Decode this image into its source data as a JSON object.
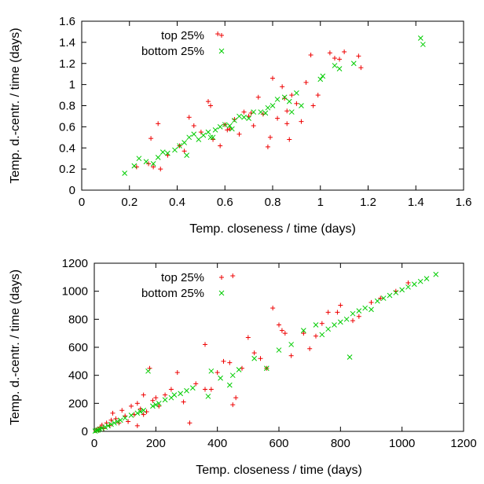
{
  "colors": {
    "top": "#ee0000",
    "bottom": "#00cc00"
  },
  "chart_data": [
    {
      "type": "scatter",
      "xlabel": "Temp. closeness / time (days)",
      "ylabel": "Temp. d.-centr. / time (days)",
      "xlim": [
        0,
        1.6
      ],
      "ylim": [
        0,
        1.6
      ],
      "xticks": [
        0,
        0.2,
        0.4,
        0.6,
        0.8,
        1,
        1.2,
        1.4,
        1.6
      ],
      "yticks": [
        0,
        0.2,
        0.4,
        0.6,
        0.8,
        1,
        1.2,
        1.4,
        1.6
      ],
      "xtick_labels": [
        "0",
        "0.2",
        "0.4",
        "0.6",
        "0.8",
        "1",
        "1.2",
        "1.4",
        "1.6"
      ],
      "ytick_labels": [
        "0",
        "0.2",
        "0.4",
        "0.6",
        "0.8",
        "1",
        "1.2",
        "1.4",
        "1.6"
      ],
      "legend_position": "top-left",
      "series": [
        {
          "name": "top 25%",
          "marker": "plus",
          "color": "#ee0000",
          "points": [
            [
              0.23,
              0.22
            ],
            [
              0.28,
              0.25
            ],
            [
              0.29,
              0.49
            ],
            [
              0.3,
              0.22
            ],
            [
              0.32,
              0.63
            ],
            [
              0.33,
              0.2
            ],
            [
              0.36,
              0.33
            ],
            [
              0.41,
              0.42
            ],
            [
              0.43,
              0.37
            ],
            [
              0.45,
              0.69
            ],
            [
              0.47,
              0.61
            ],
            [
              0.5,
              0.55
            ],
            [
              0.53,
              0.84
            ],
            [
              0.54,
              0.8
            ],
            [
              0.55,
              0.48
            ],
            [
              0.57,
              1.48
            ],
            [
              0.58,
              0.42
            ],
            [
              0.6,
              0.62
            ],
            [
              0.62,
              0.58
            ],
            [
              0.64,
              0.67
            ],
            [
              0.66,
              0.53
            ],
            [
              0.68,
              0.74
            ],
            [
              0.7,
              0.7
            ],
            [
              0.72,
              0.61
            ],
            [
              0.74,
              0.88
            ],
            [
              0.76,
              0.72
            ],
            [
              0.78,
              0.41
            ],
            [
              0.79,
              0.5
            ],
            [
              0.8,
              1.06
            ],
            [
              0.82,
              0.68
            ],
            [
              0.84,
              0.98
            ],
            [
              0.85,
              0.87
            ],
            [
              0.86,
              0.63
            ],
            [
              0.87,
              0.48
            ],
            [
              0.88,
              0.9
            ],
            [
              0.9,
              0.82
            ],
            [
              0.92,
              0.65
            ],
            [
              0.94,
              1.02
            ],
            [
              0.96,
              1.28
            ],
            [
              0.97,
              0.8
            ],
            [
              0.99,
              0.9
            ],
            [
              1.04,
              1.3
            ],
            [
              1.06,
              1.25
            ],
            [
              1.08,
              1.24
            ],
            [
              1.1,
              1.31
            ],
            [
              1.16,
              1.27
            ],
            [
              1.17,
              1.16
            ],
            [
              0.86,
              0.75
            ],
            [
              0.71,
              0.73
            ],
            [
              0.61,
              0.57
            ]
          ]
        },
        {
          "name": "bottom 25%",
          "marker": "cross",
          "color": "#00cc00",
          "points": [
            [
              0.18,
              0.16
            ],
            [
              0.22,
              0.23
            ],
            [
              0.24,
              0.3
            ],
            [
              0.27,
              0.27
            ],
            [
              0.3,
              0.25
            ],
            [
              0.32,
              0.31
            ],
            [
              0.34,
              0.36
            ],
            [
              0.36,
              0.35
            ],
            [
              0.39,
              0.38
            ],
            [
              0.41,
              0.42
            ],
            [
              0.43,
              0.45
            ],
            [
              0.45,
              0.5
            ],
            [
              0.47,
              0.53
            ],
            [
              0.49,
              0.48
            ],
            [
              0.51,
              0.52
            ],
            [
              0.53,
              0.55
            ],
            [
              0.55,
              0.5
            ],
            [
              0.56,
              0.57
            ],
            [
              0.58,
              0.6
            ],
            [
              0.6,
              0.62
            ],
            [
              0.62,
              0.61
            ],
            [
              0.64,
              0.66
            ],
            [
              0.66,
              0.7
            ],
            [
              0.68,
              0.69
            ],
            [
              0.7,
              0.68
            ],
            [
              0.72,
              0.74
            ],
            [
              0.75,
              0.74
            ],
            [
              0.78,
              0.78
            ],
            [
              0.8,
              0.8
            ],
            [
              0.82,
              0.86
            ],
            [
              0.85,
              0.88
            ],
            [
              0.87,
              0.84
            ],
            [
              0.88,
              0.74
            ],
            [
              0.9,
              0.92
            ],
            [
              0.92,
              0.8
            ],
            [
              1.0,
              1.05
            ],
            [
              1.01,
              1.08
            ],
            [
              1.06,
              1.18
            ],
            [
              1.08,
              1.15
            ],
            [
              1.14,
              1.2
            ],
            [
              1.42,
              1.44
            ],
            [
              1.43,
              1.38
            ],
            [
              0.44,
              0.33
            ],
            [
              0.54,
              0.5
            ],
            [
              0.63,
              0.58
            ],
            [
              0.77,
              0.73
            ]
          ]
        }
      ]
    },
    {
      "type": "scatter",
      "xlabel": "Temp. closeness / time (days)",
      "ylabel": "Temp. d.-centr. / time (days)",
      "xlim": [
        0,
        1200
      ],
      "ylim": [
        0,
        1200
      ],
      "xticks": [
        0,
        200,
        400,
        600,
        800,
        1000,
        1200
      ],
      "yticks": [
        0,
        200,
        400,
        600,
        800,
        1000,
        1200
      ],
      "xtick_labels": [
        "0",
        "200",
        "400",
        "600",
        "800",
        "1000",
        "1200"
      ],
      "ytick_labels": [
        "0",
        "200",
        "400",
        "600",
        "800",
        "1000",
        "1200"
      ],
      "legend_position": "top-left",
      "series": [
        {
          "name": "top 25%",
          "marker": "plus",
          "color": "#ee0000",
          "points": [
            [
              5,
              5
            ],
            [
              10,
              15
            ],
            [
              15,
              10
            ],
            [
              20,
              30
            ],
            [
              30,
              20
            ],
            [
              40,
              60
            ],
            [
              50,
              40
            ],
            [
              60,
              130
            ],
            [
              70,
              90
            ],
            [
              80,
              60
            ],
            [
              90,
              150
            ],
            [
              100,
              110
            ],
            [
              110,
              70
            ],
            [
              120,
              180
            ],
            [
              130,
              120
            ],
            [
              140,
              200
            ],
            [
              150,
              160
            ],
            [
              160,
              260
            ],
            [
              170,
              140
            ],
            [
              180,
              450
            ],
            [
              190,
              220
            ],
            [
              200,
              240
            ],
            [
              210,
              180
            ],
            [
              230,
              260
            ],
            [
              250,
              300
            ],
            [
              270,
              420
            ],
            [
              290,
              210
            ],
            [
              310,
              60
            ],
            [
              330,
              340
            ],
            [
              360,
              620
            ],
            [
              380,
              300
            ],
            [
              400,
              420
            ],
            [
              420,
              500
            ],
            [
              440,
              490
            ],
            [
              450,
              190
            ],
            [
              460,
              240
            ],
            [
              480,
              450
            ],
            [
              500,
              670
            ],
            [
              520,
              560
            ],
            [
              540,
              520
            ],
            [
              560,
              450
            ],
            [
              600,
              760
            ],
            [
              620,
              700
            ],
            [
              640,
              540
            ],
            [
              680,
              700
            ],
            [
              700,
              590
            ],
            [
              740,
              770
            ],
            [
              760,
              850
            ],
            [
              790,
              850
            ],
            [
              800,
              900
            ],
            [
              840,
              790
            ],
            [
              860,
              820
            ],
            [
              900,
              920
            ],
            [
              930,
              950
            ],
            [
              980,
              1000
            ],
            [
              1020,
              1060
            ],
            [
              450,
              1110
            ],
            [
              580,
              880
            ],
            [
              610,
              720
            ],
            [
              720,
              680
            ],
            [
              140,
              40
            ],
            [
              160,
              120
            ],
            [
              55,
              80
            ],
            [
              25,
              45
            ],
            [
              360,
              300
            ]
          ]
        },
        {
          "name": "bottom 25%",
          "marker": "cross",
          "color": "#00cc00",
          "points": [
            [
              3,
              2
            ],
            [
              8,
              6
            ],
            [
              12,
              10
            ],
            [
              18,
              16
            ],
            [
              25,
              22
            ],
            [
              35,
              30
            ],
            [
              45,
              40
            ],
            [
              55,
              50
            ],
            [
              65,
              60
            ],
            [
              75,
              70
            ],
            [
              85,
              80
            ],
            [
              100,
              95
            ],
            [
              120,
              115
            ],
            [
              140,
              130
            ],
            [
              160,
              150
            ],
            [
              175,
              430
            ],
            [
              190,
              180
            ],
            [
              210,
              200
            ],
            [
              230,
              225
            ],
            [
              260,
              260
            ],
            [
              280,
              270
            ],
            [
              300,
              290
            ],
            [
              320,
              310
            ],
            [
              370,
              250
            ],
            [
              380,
              430
            ],
            [
              410,
              380
            ],
            [
              440,
              330
            ],
            [
              450,
              400
            ],
            [
              470,
              440
            ],
            [
              520,
              520
            ],
            [
              560,
              450
            ],
            [
              600,
              580
            ],
            [
              640,
              620
            ],
            [
              680,
              720
            ],
            [
              720,
              760
            ],
            [
              740,
              690
            ],
            [
              760,
              730
            ],
            [
              780,
              760
            ],
            [
              800,
              780
            ],
            [
              820,
              800
            ],
            [
              830,
              530
            ],
            [
              840,
              840
            ],
            [
              860,
              860
            ],
            [
              880,
              880
            ],
            [
              900,
              870
            ],
            [
              920,
              930
            ],
            [
              940,
              950
            ],
            [
              960,
              970
            ],
            [
              980,
              990
            ],
            [
              1000,
              1010
            ],
            [
              1020,
              1030
            ],
            [
              1040,
              1050
            ],
            [
              1060,
              1070
            ],
            [
              1080,
              1090
            ],
            [
              1110,
              1120
            ],
            [
              150,
              140
            ],
            [
              200,
              190
            ],
            [
              250,
              240
            ]
          ]
        }
      ]
    }
  ]
}
